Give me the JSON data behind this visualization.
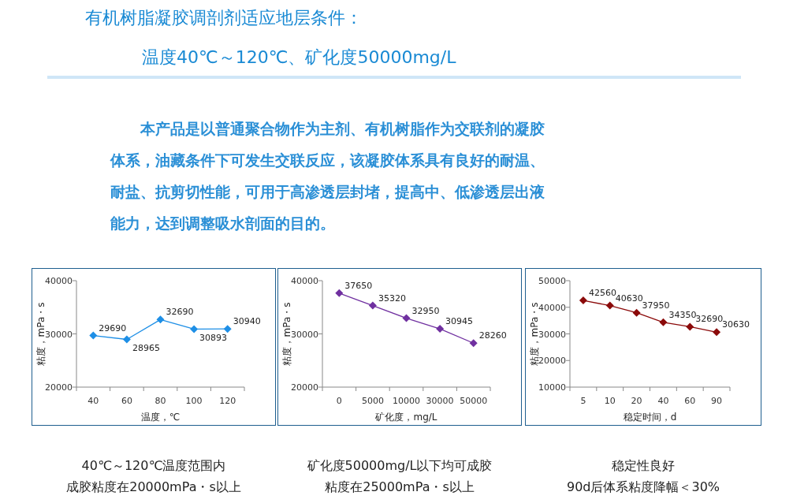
{
  "chart_data": [
    {
      "type": "other",
      "title": "有机树脂凝胶调剖剂适应地层条件：",
      "subtitle": "温度40℃～120℃、矿化度50000mg/L",
      "annotations": [
        "本产品是以普通聚合物作为主剂、有机树脂作为交联剂的凝胶",
        "体系，油藏条件下可发生交联反应，该凝胶体系具有良好的耐温、",
        "耐盐、抗剪切性能，可用于高渗透层封堵，提高中、低渗透层出液",
        "能力，达到调整吸水剖面的目的。"
      ]
    },
    {
      "type": "line",
      "categories": [
        "40",
        "60",
        "80",
        "100",
        "120"
      ],
      "xlabel": "温度，℃",
      "ylabel": "粘度，mPa・s",
      "ylim": [
        20000,
        40000
      ],
      "yticks": [
        20000,
        30000,
        40000
      ],
      "marker": "diamond",
      "data_labels": true,
      "series": [
        {
          "color": "#1e8fe6",
          "values": [
            29690,
            28965,
            32690,
            30893,
            30940
          ]
        }
      ],
      "annotations": [
        "40℃～120℃温度范围内",
        "成胶粘度在20000mPa・s以上"
      ]
    },
    {
      "type": "line",
      "categories": [
        "0",
        "5000",
        "10000",
        "30000",
        "50000"
      ],
      "xlabel": "矿化度，mg/L",
      "ylabel": "粘度，mPa・s",
      "ylim": [
        20000,
        40000
      ],
      "yticks": [
        20000,
        30000,
        40000
      ],
      "marker": "diamond",
      "data_labels": true,
      "series": [
        {
          "color": "#7030a0",
          "values": [
            37650,
            35320,
            32950,
            30945,
            28260
          ]
        }
      ],
      "annotations": [
        "矿化度50000mg/L以下均可成胶",
        "粘度在25000mPa・s以上"
      ]
    },
    {
      "type": "line",
      "categories": [
        "5",
        "10",
        "20",
        "40",
        "60",
        "90"
      ],
      "xlabel": "稳定时间，d",
      "ylabel": "粘度，mPa・s",
      "ylim": [
        10000,
        50000
      ],
      "yticks": [
        10000,
        20000,
        30000,
        40000,
        50000
      ],
      "marker": "diamond",
      "data_labels": true,
      "series": [
        {
          "color": "#8b0a0a",
          "values": [
            42560,
            40630,
            37950,
            34350,
            32690,
            30630
          ]
        }
      ],
      "annotations": [
        "稳定性良好",
        "90d后体系粘度降幅＜30%"
      ]
    }
  ]
}
